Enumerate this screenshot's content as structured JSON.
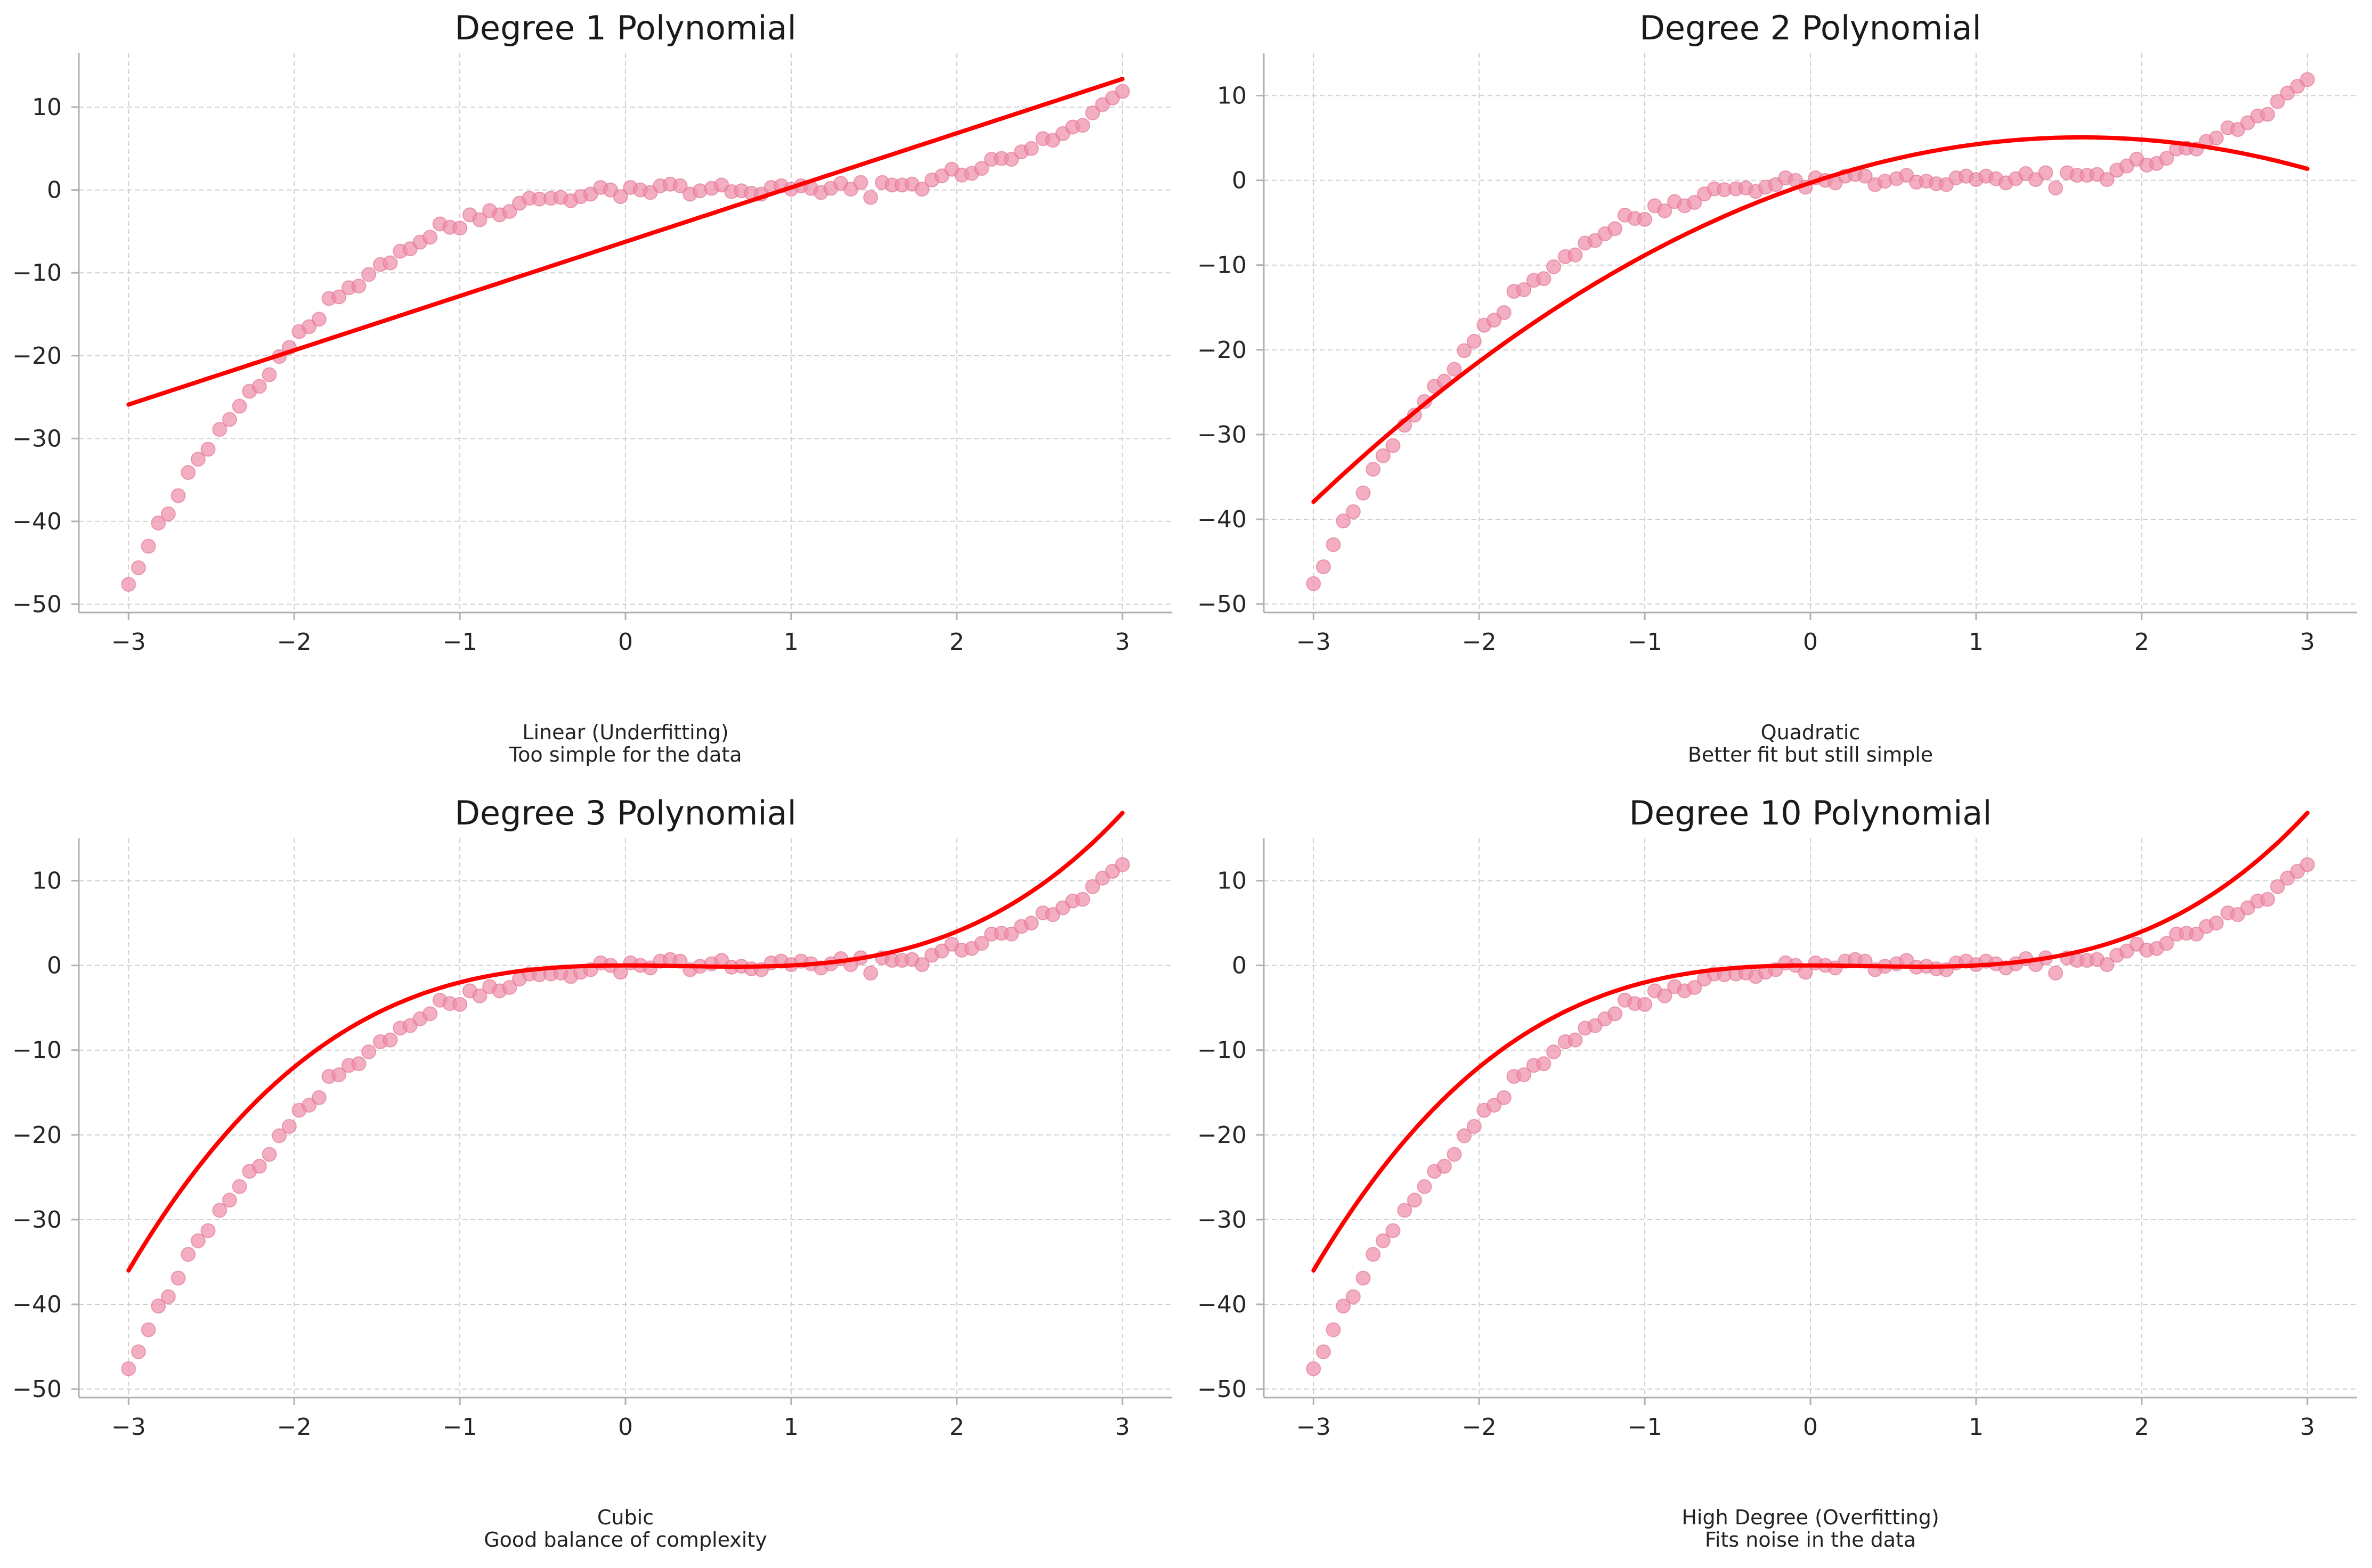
{
  "colors": {
    "points": "#f08ba6",
    "points_edge": "#e07090",
    "fit_line": "#ff0000",
    "grid": "#cfcfcf",
    "spine": "#b0b0b0"
  },
  "chart_data": [
    {
      "type": "scatter",
      "title": "Degree 1 Polynomial",
      "caption_line1": "Linear (Underfitting)",
      "caption_line2": "Too simple for the data",
      "xlim": [
        -3.3,
        3.3
      ],
      "ylim": [
        -51,
        16.5
      ],
      "x_ticks": [
        -3,
        -2,
        -1,
        0,
        1,
        2,
        3
      ],
      "x_tick_labels": [
        "−3",
        "−2",
        "−1",
        "0",
        "1",
        "2",
        "3"
      ],
      "y_ticks": [
        -50,
        -40,
        -30,
        -20,
        -10,
        0,
        10
      ],
      "y_tick_labels": [
        "−50",
        "−40",
        "−30",
        "−20",
        "−10",
        "0",
        "10"
      ],
      "grid": true,
      "fit_degree": 1,
      "fit_coefficients": [
        -6.25,
        6.55
      ]
    },
    {
      "type": "scatter",
      "title": "Degree 2 Polynomial",
      "caption_line1": "Quadratic",
      "caption_line2": "Better fit but still simple",
      "xlim": [
        -3.3,
        3.3
      ],
      "ylim": [
        -51,
        15
      ],
      "x_ticks": [
        -3,
        -2,
        -1,
        0,
        1,
        2,
        3
      ],
      "x_tick_labels": [
        "−3",
        "−2",
        "−1",
        "0",
        "1",
        "2",
        "3"
      ],
      "y_ticks": [
        -50,
        -40,
        -30,
        -20,
        -10,
        0,
        10
      ],
      "y_tick_labels": [
        "−50",
        "−40",
        "−30",
        "−20",
        "−10",
        "0",
        "10"
      ],
      "grid": true,
      "fit_degree": 2,
      "fit_coefficients": [
        -0.29,
        6.55,
        -2.0
      ]
    },
    {
      "type": "scatter",
      "title": "Degree 3 Polynomial",
      "caption_line1": "Cubic",
      "caption_line2": "Good balance of complexity",
      "xlim": [
        -3.3,
        3.3
      ],
      "ylim": [
        -51,
        15
      ],
      "x_ticks": [
        -3,
        -2,
        -1,
        0,
        1,
        2,
        3
      ],
      "x_tick_labels": [
        "−3",
        "−2",
        "−1",
        "0",
        "1",
        "2",
        "3"
      ],
      "y_ticks": [
        -50,
        -40,
        -30,
        -20,
        -10,
        0,
        10
      ],
      "y_tick_labels": [
        "−50",
        "−40",
        "−30",
        "−20",
        "−10",
        "0",
        "10"
      ],
      "grid": true,
      "fit_degree": 3,
      "fit_coefficients": [
        0.0,
        0.0,
        -1.0,
        1.0
      ]
    },
    {
      "type": "scatter",
      "title": "Degree 10 Polynomial",
      "caption_line1": "High Degree (Overfitting)",
      "caption_line2": "Fits noise in the data",
      "xlim": [
        -3.3,
        3.3
      ],
      "ylim": [
        -51,
        15
      ],
      "x_ticks": [
        -3,
        -2,
        -1,
        0,
        1,
        2,
        3
      ],
      "x_tick_labels": [
        "−3",
        "−2",
        "−1",
        "0",
        "1",
        "2",
        "3"
      ],
      "y_ticks": [
        -50,
        -40,
        -30,
        -20,
        -10,
        0,
        10
      ],
      "y_tick_labels": [
        "−50",
        "−40",
        "−30",
        "−20",
        "−10",
        "0",
        "10"
      ],
      "grid": true,
      "fit_degree": 10,
      "fit_coefficients": [
        0.0,
        0.0,
        -1.0,
        1.0
      ]
    }
  ],
  "scatter_points": {
    "x": [
      -3.0,
      -2.94,
      -2.88,
      -2.82,
      -2.76,
      -2.7,
      -2.64,
      -2.58,
      -2.52,
      -2.45,
      -2.39,
      -2.33,
      -2.27,
      -2.21,
      -2.15,
      -2.09,
      -2.03,
      -1.97,
      -1.91,
      -1.85,
      -1.79,
      -1.73,
      -1.67,
      -1.61,
      -1.55,
      -1.48,
      -1.42,
      -1.36,
      -1.3,
      -1.24,
      -1.18,
      -1.12,
      -1.06,
      -1.0,
      -0.94,
      -0.88,
      -0.82,
      -0.76,
      -0.7,
      -0.64,
      -0.58,
      -0.52,
      -0.45,
      -0.39,
      -0.33,
      -0.27,
      -0.21,
      -0.15,
      -0.09,
      -0.03,
      0.03,
      0.09,
      0.15,
      0.21,
      0.27,
      0.33,
      0.39,
      0.45,
      0.52,
      0.58,
      0.64,
      0.7,
      0.76,
      0.82,
      0.88,
      0.94,
      1.0,
      1.06,
      1.12,
      1.18,
      1.24,
      1.3,
      1.36,
      1.42,
      1.48,
      1.55,
      1.61,
      1.67,
      1.73,
      1.79,
      1.85,
      1.91,
      1.97,
      2.03,
      2.09,
      2.15,
      2.21,
      2.27,
      2.33,
      2.39,
      2.45,
      2.52,
      2.58,
      2.64,
      2.7,
      2.76,
      2.82,
      2.88,
      2.94,
      3.0
    ],
    "y": [
      -47.6,
      -45.6,
      -43.0,
      -40.2,
      -39.1,
      -36.9,
      -34.1,
      -32.5,
      -31.3,
      -28.9,
      -27.7,
      -26.1,
      -24.3,
      -23.7,
      -22.3,
      -20.1,
      -19.0,
      -17.1,
      -16.5,
      -15.6,
      -13.1,
      -12.9,
      -11.8,
      -11.6,
      -10.2,
      -9.0,
      -8.8,
      -7.4,
      -7.1,
      -6.3,
      -5.7,
      -4.1,
      -4.5,
      -4.6,
      -3.0,
      -3.6,
      -2.5,
      -3.0,
      -2.6,
      -1.6,
      -1.0,
      -1.1,
      -1.0,
      -0.9,
      -1.3,
      -0.8,
      -0.5,
      0.3,
      0.0,
      -0.8,
      0.3,
      0.0,
      -0.3,
      0.5,
      0.7,
      0.5,
      -0.5,
      -0.1,
      0.2,
      0.6,
      -0.2,
      -0.1,
      -0.4,
      -0.5,
      0.3,
      0.5,
      0.1,
      0.5,
      0.2,
      -0.3,
      0.2,
      0.8,
      0.1,
      0.9,
      -0.9,
      0.9,
      0.6,
      0.6,
      0.7,
      0.1,
      1.2,
      1.7,
      2.5,
      1.8,
      2.0,
      2.6,
      3.7,
      3.8,
      3.7,
      4.6,
      5.0,
      6.2,
      6.0,
      6.8,
      7.6,
      7.8,
      9.3,
      10.3,
      11.1,
      11.9
    ]
  }
}
